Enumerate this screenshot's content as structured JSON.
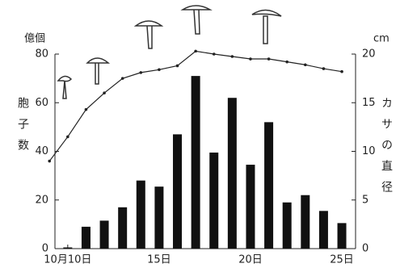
{
  "chart_data": {
    "type": "bar",
    "y_unit": "億個",
    "y_label": "胞子数",
    "y2_unit": "cm",
    "y2_label": "カサの直径",
    "xlim": [
      9.3,
      25.75
    ],
    "xticks": [
      {
        "value": 10,
        "label": "10月10日"
      },
      {
        "value": 15,
        "label": "15日"
      },
      {
        "value": 20,
        "label": "20日"
      },
      {
        "value": 25,
        "label": "25日"
      }
    ],
    "ylim": [
      0,
      80
    ],
    "yticks": [
      0,
      20,
      40,
      60,
      80
    ],
    "y2lim": [
      0,
      20
    ],
    "y2ticks": [
      0,
      5,
      10,
      15,
      20
    ],
    "series": [
      {
        "type": "bar",
        "color": "#111",
        "x": [
          10,
          11,
          12,
          13,
          14,
          15,
          16,
          17,
          18,
          19,
          20,
          21,
          22,
          23,
          24,
          25
        ],
        "values": [
          0.5,
          9,
          11.5,
          17,
          28,
          25.5,
          47,
          71,
          39.5,
          62,
          34.5,
          52,
          19,
          22,
          15.5,
          10.5
        ]
      },
      {
        "type": "line",
        "axis": "y2",
        "color": "#222",
        "x": [
          9,
          10,
          11,
          12,
          13,
          14,
          15,
          16,
          17,
          18,
          19,
          20,
          21,
          22,
          23,
          24,
          25
        ],
        "values": [
          9,
          11.5,
          14.3,
          16,
          17.5,
          18.1,
          18.4,
          18.8,
          20.3,
          20,
          19.75,
          19.5,
          19.5,
          19.2,
          18.9,
          18.5,
          18.2
        ]
      }
    ]
  }
}
